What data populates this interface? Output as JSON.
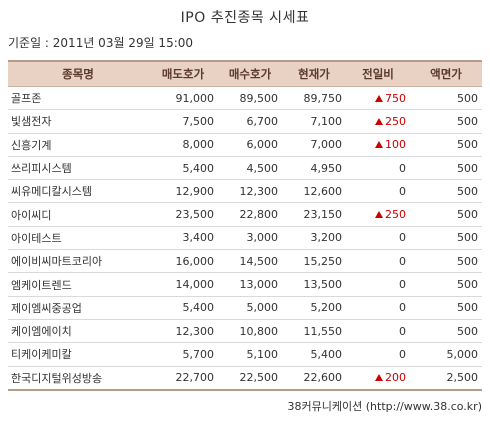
{
  "title": "IPO 추진종목 시세표",
  "basis": "기준일 : 2011년 03월 29일 15:00",
  "colors": {
    "header_bg": "#e9d2c4",
    "up": "#cc0000"
  },
  "table": {
    "headers": [
      "종목명",
      "매도호가",
      "매수호가",
      "현재가",
      "전일비",
      "액면가"
    ],
    "rows": [
      {
        "name": "골프존",
        "ask": "91,000",
        "bid": "89,500",
        "price": "89,750",
        "change": "750",
        "dir": "up",
        "par": "500"
      },
      {
        "name": "빛샘전자",
        "ask": "7,500",
        "bid": "6,700",
        "price": "7,100",
        "change": "250",
        "dir": "up",
        "par": "500"
      },
      {
        "name": "신흥기계",
        "ask": "8,000",
        "bid": "6,000",
        "price": "7,000",
        "change": "100",
        "dir": "up",
        "par": "500"
      },
      {
        "name": "쓰리피시스템",
        "ask": "5,400",
        "bid": "4,500",
        "price": "4,950",
        "change": "0",
        "dir": "flat",
        "par": "500"
      },
      {
        "name": "씨유메디칼시스템",
        "ask": "12,900",
        "bid": "12,300",
        "price": "12,600",
        "change": "0",
        "dir": "flat",
        "par": "500"
      },
      {
        "name": "아이씨디",
        "ask": "23,500",
        "bid": "22,800",
        "price": "23,150",
        "change": "250",
        "dir": "up",
        "par": "500"
      },
      {
        "name": "아이테스트",
        "ask": "3,400",
        "bid": "3,000",
        "price": "3,200",
        "change": "0",
        "dir": "flat",
        "par": "500"
      },
      {
        "name": "에이비씨마트코리아",
        "ask": "16,000",
        "bid": "14,500",
        "price": "15,250",
        "change": "0",
        "dir": "flat",
        "par": "500"
      },
      {
        "name": "엠케이트렌드",
        "ask": "14,000",
        "bid": "13,000",
        "price": "13,500",
        "change": "0",
        "dir": "flat",
        "par": "500"
      },
      {
        "name": "제이엠씨중공업",
        "ask": "5,400",
        "bid": "5,000",
        "price": "5,200",
        "change": "0",
        "dir": "flat",
        "par": "500"
      },
      {
        "name": "케이엠에이치",
        "ask": "12,300",
        "bid": "10,800",
        "price": "11,550",
        "change": "0",
        "dir": "flat",
        "par": "500"
      },
      {
        "name": "티케이케미칼",
        "ask": "5,700",
        "bid": "5,100",
        "price": "5,400",
        "change": "0",
        "dir": "flat",
        "par": "5,000"
      },
      {
        "name": "한국디지털위성방송",
        "ask": "22,700",
        "bid": "22,500",
        "price": "22,600",
        "change": "200",
        "dir": "up",
        "par": "2,500"
      }
    ]
  },
  "source": "38커뮤니케이션 (http://www.38.co.kr)"
}
